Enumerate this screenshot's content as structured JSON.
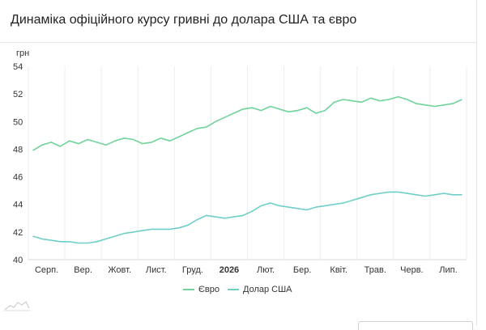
{
  "header": {
    "title": "Динаміка офіційного курсу гривні до долара США та євро"
  },
  "chart_data": {
    "type": "line",
    "ylabel": "грн",
    "ylim": [
      40,
      54
    ],
    "yticks": [
      40,
      42,
      44,
      46,
      48,
      50,
      52,
      54
    ],
    "grid": {
      "vertical": true,
      "horizontal": false
    },
    "x_tick_labels": [
      {
        "label": "Серп.",
        "bold": false
      },
      {
        "label": "Вер.",
        "bold": false
      },
      {
        "label": "Жовт.",
        "bold": false
      },
      {
        "label": "Лист.",
        "bold": false
      },
      {
        "label": "Груд.",
        "bold": false
      },
      {
        "label": "2026",
        "bold": true
      },
      {
        "label": "Лют.",
        "bold": false
      },
      {
        "label": "Бер.",
        "bold": false
      },
      {
        "label": "Квіт.",
        "bold": false
      },
      {
        "label": "Трав.",
        "bold": false
      },
      {
        "label": "Черв.",
        "bold": false
      },
      {
        "label": "Лип.",
        "bold": false
      }
    ],
    "legend_position": "bottom",
    "series": [
      {
        "name": "Євро",
        "color": "#6fd39a",
        "values": [
          47.9,
          48.3,
          48.5,
          48.2,
          48.6,
          48.4,
          48.7,
          48.5,
          48.3,
          48.6,
          48.8,
          48.7,
          48.4,
          48.5,
          48.8,
          48.6,
          48.9,
          49.2,
          49.5,
          49.6,
          50.0,
          50.3,
          50.6,
          50.9,
          51.0,
          50.8,
          51.1,
          50.9,
          50.7,
          50.8,
          51.0,
          50.6,
          50.8,
          51.4,
          51.6,
          51.5,
          51.4,
          51.7,
          51.5,
          51.6,
          51.8,
          51.6,
          51.3,
          51.2,
          51.1,
          51.2,
          51.3,
          51.6
        ],
        "points_per_segment": [
          4,
          4,
          4,
          4,
          4,
          4,
          4,
          4,
          4,
          4,
          4,
          4
        ]
      },
      {
        "name": "Долар США",
        "color": "#6fcfc8",
        "values": [
          41.7,
          41.5,
          41.4,
          41.3,
          41.3,
          41.2,
          41.2,
          41.3,
          41.5,
          41.7,
          41.9,
          42.0,
          42.1,
          42.2,
          42.2,
          42.2,
          42.3,
          42.5,
          42.9,
          43.2,
          43.1,
          43.0,
          43.1,
          43.2,
          43.5,
          43.9,
          44.1,
          43.9,
          43.8,
          43.7,
          43.6,
          43.8,
          43.9,
          44.0,
          44.1,
          44.3,
          44.5,
          44.7,
          44.8,
          44.9,
          44.9,
          44.8,
          44.7,
          44.6,
          44.7,
          44.8,
          44.7,
          44.7
        ],
        "points_per_segment": [
          4,
          4,
          4,
          4,
          4,
          4,
          4,
          4,
          4,
          4,
          4,
          4
        ]
      }
    ]
  },
  "legend": {
    "items": [
      {
        "label": "Євро",
        "color": "#6fd39a"
      },
      {
        "label": "Долар США",
        "color": "#6fcfc8"
      }
    ]
  },
  "icons": {
    "scroll_hint": "mini-chart-icon"
  }
}
